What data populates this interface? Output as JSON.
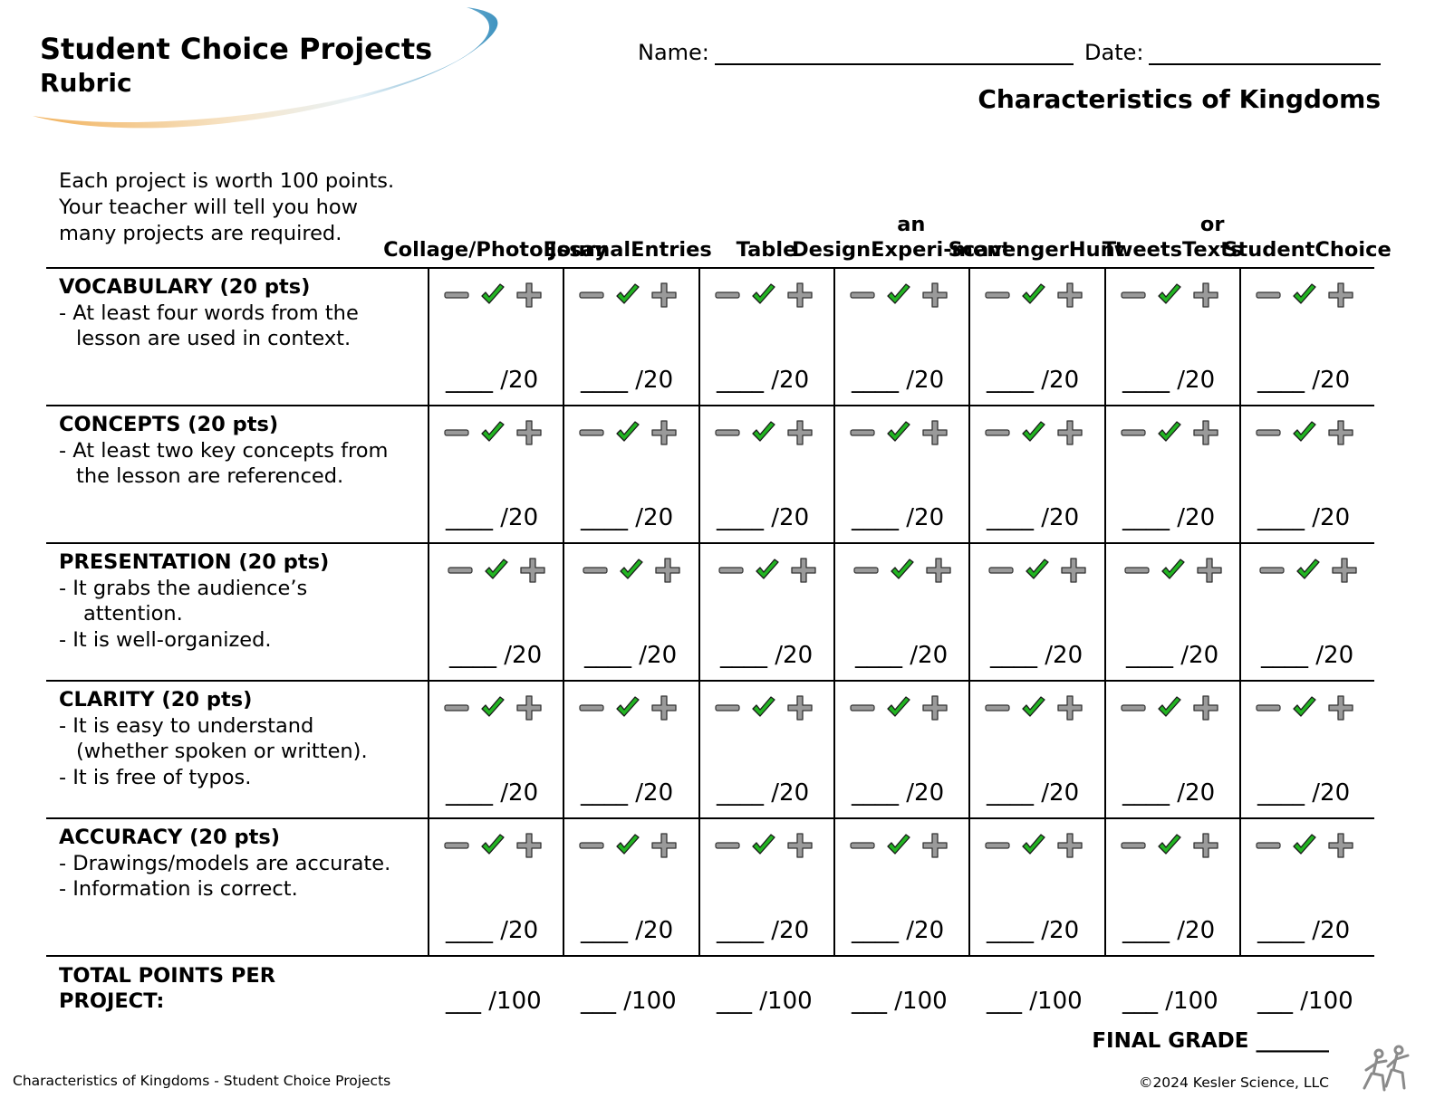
{
  "header": {
    "title": "Student Choice Projects",
    "subtitle": "Rubric",
    "name_label": "Name:",
    "date_label": "Date:",
    "topic": "Characteristics of Kingdoms"
  },
  "intro": "Each project is worth 100 points. Your teacher will tell you how many projects are required.",
  "columns": [
    [
      "Collage/",
      "Photo",
      "Essay"
    ],
    [
      "Journal",
      "Entries"
    ],
    [
      "Table"
    ],
    [
      "Design",
      "an Experi-",
      "ment"
    ],
    [
      "Scavenger",
      "Hunt"
    ],
    [
      "Tweets",
      "or Texts"
    ],
    [
      "Student",
      "Choice"
    ]
  ],
  "criteria": [
    {
      "title": "VOCABULARY (20 pts)",
      "lines": [
        "- At least four words from the",
        "  lesson are used in context."
      ]
    },
    {
      "title": "CONCEPTS (20 pts)",
      "lines": [
        "- At least two key concepts from",
        "  the lesson are referenced."
      ]
    },
    {
      "title": "PRESENTATION (20 pts)",
      "lines": [
        "-  It grabs the audience’s",
        "   attention.",
        "-  It is well-organized."
      ]
    },
    {
      "title": "CLARITY (20 pts)",
      "lines": [
        "- It is easy to understand",
        "  (whether spoken or written).",
        "- It is free of typos."
      ]
    },
    {
      "title": "ACCURACY (20 pts)",
      "lines": [
        "- Drawings/models are accurate.",
        "- Information is correct."
      ]
    }
  ],
  "score_blank": "____ /20",
  "total": {
    "label": "TOTAL POINTS PER PROJECT:",
    "blank": "___ /100"
  },
  "final_grade": "FINAL GRADE _______",
  "footer": {
    "left": "Characteristics of Kingdoms - Student Choice Projects",
    "right": "©2024  Kesler Science, LLC"
  },
  "icons": {
    "minus": "minus-icon",
    "check": "checkmark-icon",
    "plus": "plus-icon",
    "check_color": "#22b422",
    "gray": "#9a9a9a"
  }
}
